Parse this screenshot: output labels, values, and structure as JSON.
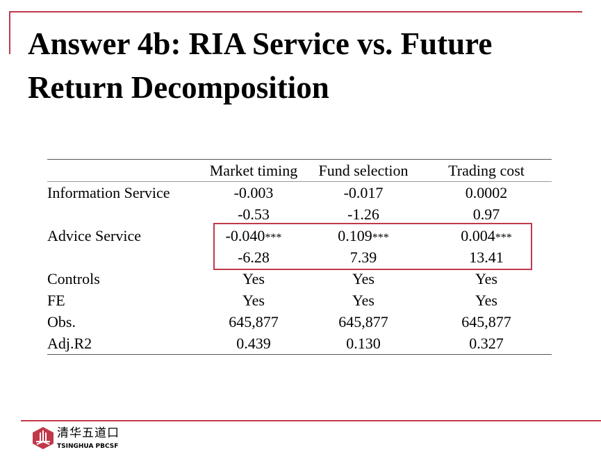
{
  "title": "Answer 4b: RIA Service vs. Future Return Decomposition",
  "table": {
    "columns": [
      "",
      "Market timing",
      "Fund selection",
      "Trading cost"
    ],
    "rows": [
      {
        "label": "Information Service",
        "values": [
          "-0.003",
          "-0.017",
          "0.0002"
        ],
        "stars": [
          "",
          "",
          ""
        ]
      },
      {
        "label": "",
        "values": [
          "-0.53",
          "-1.26",
          "0.97"
        ],
        "stars": [
          "",
          "",
          ""
        ]
      },
      {
        "label": "Advice Service",
        "values": [
          "-0.040",
          "0.109",
          "0.004"
        ],
        "stars": [
          "***",
          "***",
          "***"
        ]
      },
      {
        "label": "",
        "values": [
          "-6.28",
          "7.39",
          "13.41"
        ],
        "stars": [
          "",
          "",
          ""
        ]
      },
      {
        "label": "Controls",
        "values": [
          "Yes",
          "Yes",
          "Yes"
        ],
        "stars": [
          "",
          "",
          ""
        ]
      },
      {
        "label": "FE",
        "values": [
          "Yes",
          "Yes",
          "Yes"
        ],
        "stars": [
          "",
          "",
          ""
        ]
      },
      {
        "label": "Obs.",
        "values": [
          "645,877",
          "645,877",
          "645,877"
        ],
        "stars": [
          "",
          "",
          ""
        ]
      },
      {
        "label": "Adj.R2",
        "values": [
          "0.439",
          "0.130",
          "0.327"
        ],
        "stars": [
          "",
          "",
          ""
        ]
      }
    ]
  },
  "logo": {
    "cn": "清华五道口",
    "en": "TSINGHUA PBCSF"
  },
  "colors": {
    "accent": "#c0394b"
  }
}
